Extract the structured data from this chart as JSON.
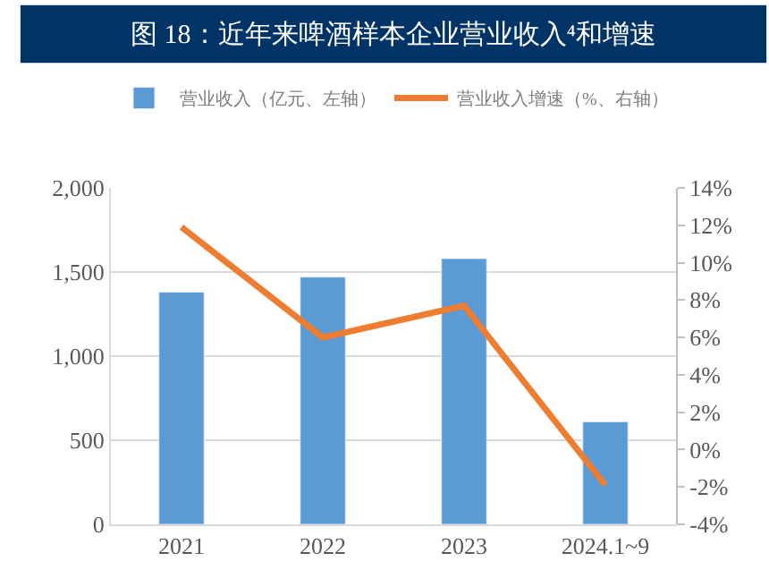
{
  "chart_data": {
    "type": "bar",
    "title": "图 18：近年来啤酒样本企业营业收入⁴和增速",
    "categories": [
      "2021",
      "2022",
      "2023",
      "2024.1~9"
    ],
    "series": [
      {
        "name": "营业收入（亿元、左轴）",
        "color": "#5b9bd5",
        "values": [
          1380,
          1470,
          1580,
          610
        ]
      },
      {
        "name": "营业收入增速（%、右轴）",
        "type": "line",
        "axis": "y2",
        "color": "#ed7d31",
        "values": [
          11.9,
          6.0,
          7.7,
          -1.9
        ]
      }
    ],
    "ylim": [
      0,
      2000
    ],
    "yticks": [
      {
        "value": 0,
        "label": "0"
      },
      {
        "value": 500,
        "label": "500"
      },
      {
        "value": 1000,
        "label": "1,000"
      },
      {
        "value": 1500,
        "label": "1,500"
      },
      {
        "value": 2000,
        "label": "2,000"
      }
    ],
    "y2lim": [
      -4,
      14
    ],
    "y2ticks": [
      {
        "value": -4,
        "label": "-4%"
      },
      {
        "value": -2,
        "label": "-2%"
      },
      {
        "value": 0,
        "label": "0%"
      },
      {
        "value": 2,
        "label": "2%"
      },
      {
        "value": 4,
        "label": "4%"
      },
      {
        "value": 6,
        "label": "6%"
      },
      {
        "value": 8,
        "label": "8%"
      },
      {
        "value": 10,
        "label": "10%"
      },
      {
        "value": 12,
        "label": "12%"
      },
      {
        "value": 14,
        "label": "14%"
      }
    ],
    "grid": "y",
    "legend": "top",
    "marker": "none"
  }
}
